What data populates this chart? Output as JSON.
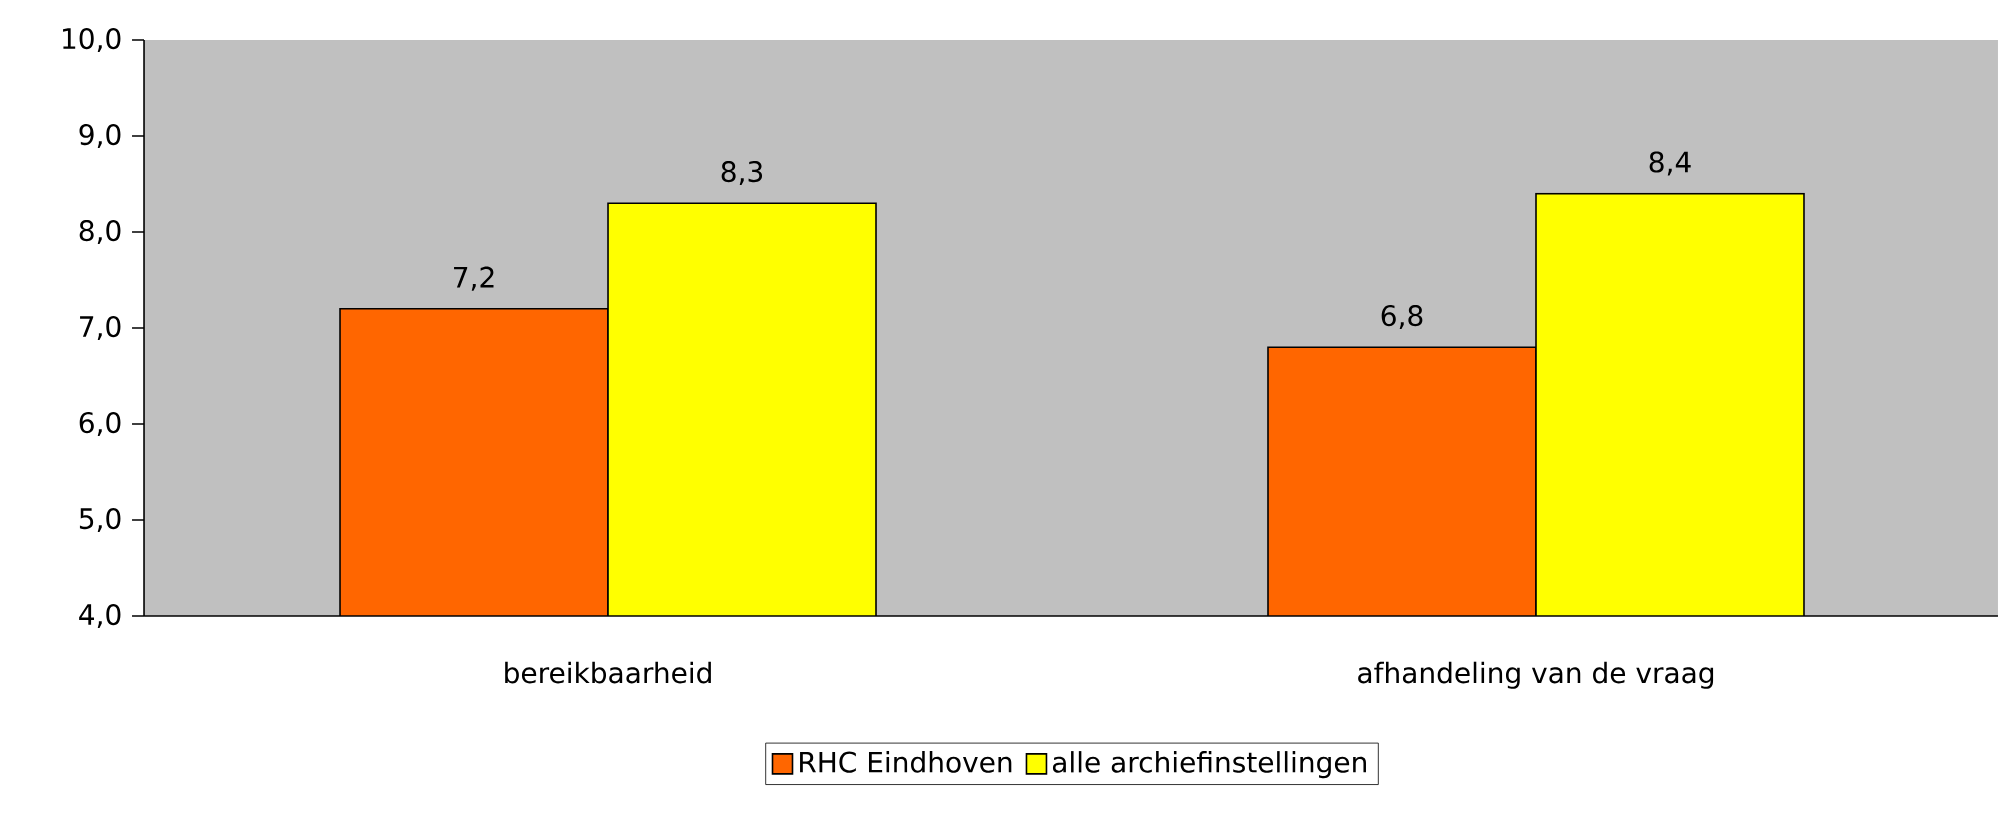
{
  "chart_data": {
    "type": "bar",
    "categories": [
      "bereikbaarheid",
      "afhandeling van de vraag"
    ],
    "series": [
      {
        "name": "RHC Eindhoven",
        "color": "#ff6600",
        "values": [
          7.2,
          6.8
        ],
        "value_labels": [
          "7,2",
          "6,8"
        ]
      },
      {
        "name": "alle archiefinstellingen",
        "color": "#ffff00",
        "values": [
          8.3,
          8.4
        ],
        "value_labels": [
          "8,3",
          "8,4"
        ]
      }
    ],
    "ylim": [
      4,
      10
    ],
    "yticks": [
      {
        "value": 4,
        "label": "4,0"
      },
      {
        "value": 5,
        "label": "5,0"
      },
      {
        "value": 6,
        "label": "6,0"
      },
      {
        "value": 7,
        "label": "7,0"
      },
      {
        "value": 8,
        "label": "8,0"
      },
      {
        "value": 9,
        "label": "9,0"
      },
      {
        "value": 10,
        "label": "10,0"
      }
    ],
    "grid": false,
    "legend": "bottom"
  }
}
